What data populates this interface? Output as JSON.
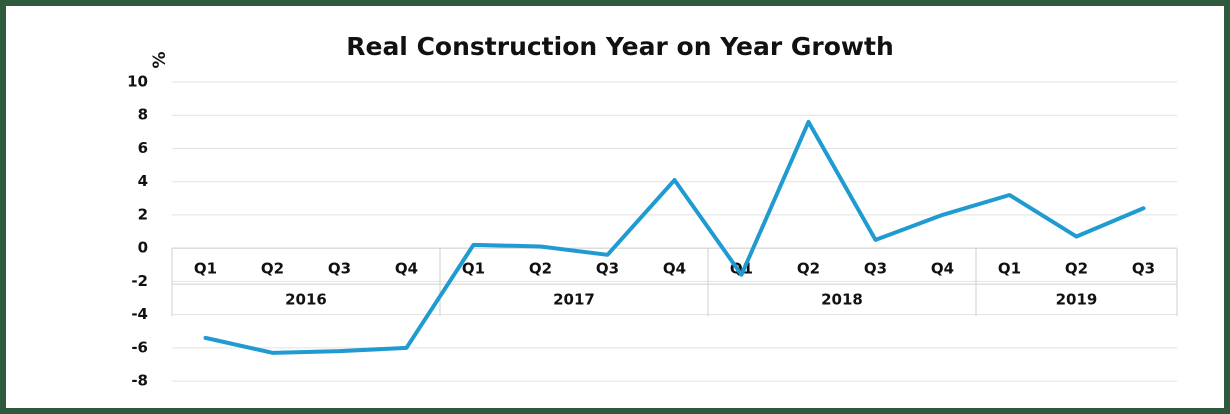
{
  "chart_data": {
    "type": "line",
    "title": "Real Construction Year on Year Growth",
    "y_label": "%",
    "categories": [
      "Q1",
      "Q2",
      "Q3",
      "Q4",
      "Q1",
      "Q2",
      "Q3",
      "Q4",
      "Q1",
      "Q2",
      "Q3",
      "Q4",
      "Q1",
      "Q2",
      "Q3"
    ],
    "category_groups": [
      "2016",
      "2017",
      "2018",
      "2019"
    ],
    "series": [
      {
        "name": "Real Construction",
        "color": "#1f9bd1",
        "values": [
          -5.4,
          -6.3,
          -6.2,
          -6.0,
          0.2,
          0.1,
          -0.4,
          4.1,
          -1.6,
          7.6,
          0.5,
          2.0,
          3.2,
          0.7,
          2.4
        ]
      }
    ],
    "ylim": [
      -9.5,
      10
    ],
    "yticks": [
      -8,
      -6,
      -4,
      -2,
      0,
      2,
      4,
      6,
      8,
      10
    ],
    "grid": true
  }
}
